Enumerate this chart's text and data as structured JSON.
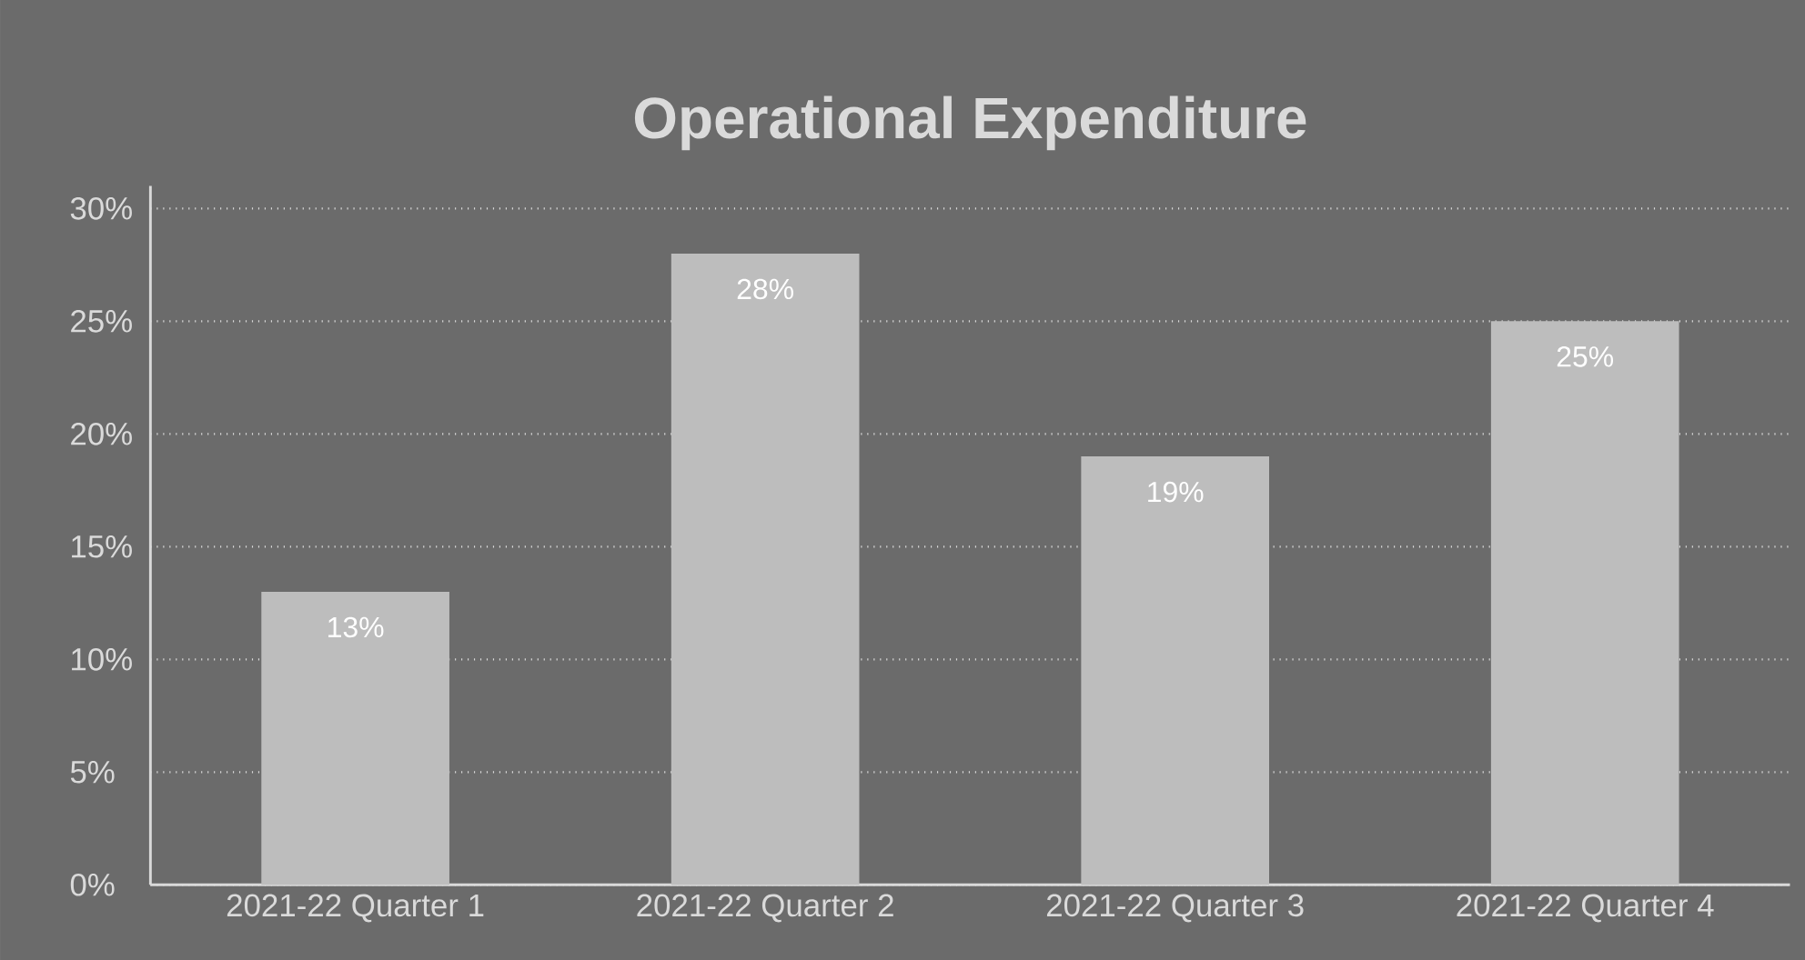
{
  "chart_data": {
    "type": "bar",
    "title": "Operational Expenditure",
    "categories": [
      "2021-22 Quarter 1",
      "2021-22 Quarter 2",
      "2021-22 Quarter 3",
      "2021-22 Quarter 4"
    ],
    "values": [
      13,
      28,
      19,
      25
    ],
    "value_labels": [
      "13%",
      "28%",
      "19%",
      "25%"
    ],
    "color": "#bdbdbd",
    "ylim": [
      0,
      31
    ],
    "yticks": [
      {
        "value": 0,
        "label": "0%"
      },
      {
        "value": 5,
        "label": "5%"
      },
      {
        "value": 10,
        "label": "10%"
      },
      {
        "value": 15,
        "label": "15%"
      },
      {
        "value": 20,
        "label": "20%"
      },
      {
        "value": 25,
        "label": "25%"
      },
      {
        "value": 30,
        "label": "30%"
      }
    ],
    "grid": "y"
  }
}
